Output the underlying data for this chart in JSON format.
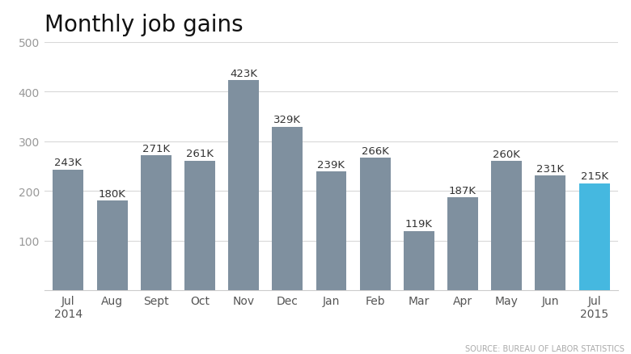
{
  "title": "Monthly job gains",
  "categories": [
    "Jul\n2014",
    "Aug",
    "Sept",
    "Oct",
    "Nov",
    "Dec",
    "Jan",
    "Feb",
    "Mar",
    "Apr",
    "May",
    "Jun",
    "Jul\n2015"
  ],
  "values": [
    243,
    180,
    271,
    261,
    423,
    329,
    239,
    266,
    119,
    187,
    260,
    231,
    215
  ],
  "labels": [
    "243K",
    "180K",
    "271K",
    "261K",
    "423K",
    "329K",
    "239K",
    "266K",
    "119K",
    "187K",
    "260K",
    "231K",
    "215K"
  ],
  "bar_colors": [
    "#7f909f",
    "#7f909f",
    "#7f909f",
    "#7f909f",
    "#7f909f",
    "#7f909f",
    "#7f909f",
    "#7f909f",
    "#7f909f",
    "#7f909f",
    "#7f909f",
    "#7f909f",
    "#45b8e0"
  ],
  "ylim": [
    0,
    500
  ],
  "yticks": [
    100,
    200,
    300,
    400,
    500
  ],
  "source_text": "SOURCE: BUREAU OF LABOR STATISTICS",
  "background_color": "#ffffff",
  "plot_bg_color": "#f5f5f5",
  "grid_color": "#d8d8d8",
  "title_fontsize": 20,
  "label_fontsize": 9.5,
  "tick_fontsize": 10,
  "source_fontsize": 7
}
